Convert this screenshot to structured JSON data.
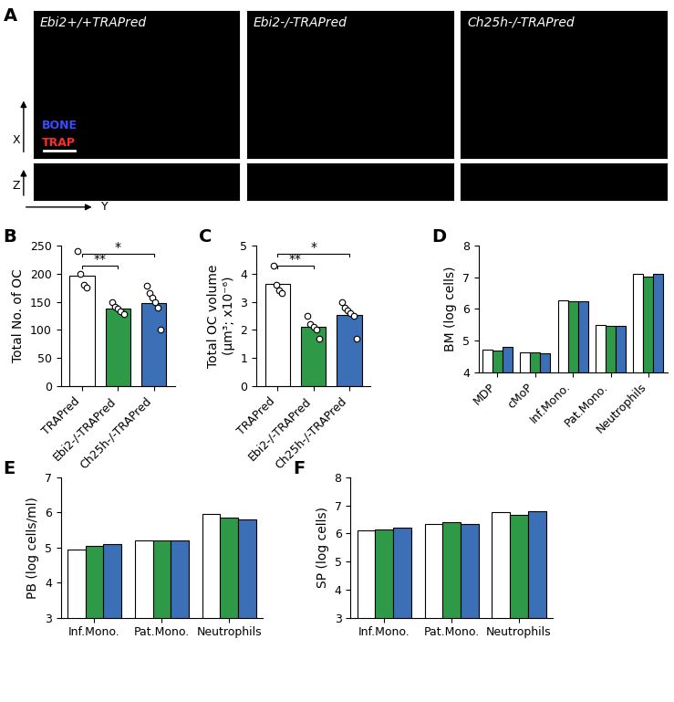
{
  "panel_A": {
    "panel_label": "A",
    "images": [
      {
        "title": "Ebi2+/+TRAPred"
      },
      {
        "title": "Ebi2-/-TRAPred"
      },
      {
        "title": "Ch25h-/-TRAPred"
      }
    ],
    "legend": [
      {
        "text": "BONE",
        "color": "#3a4bff"
      },
      {
        "text": "TRAP",
        "color": "#ff2a2a"
      }
    ],
    "axis_labels": {
      "vertical_top": "X",
      "vertical_bottom": "Z",
      "horizontal": "Y"
    }
  },
  "chart_data": [
    {
      "panel_label": "B",
      "type": "bar",
      "categories": [
        "TRAPred",
        "Ebi2-/-TRAPred",
        "Ch25h-/-TRAPred"
      ],
      "values": [
        197,
        138,
        148
      ],
      "colors": [
        "#ffffff",
        "#2e9a48",
        "#3b6fb6"
      ],
      "points": [
        [
          240,
          200,
          180,
          175
        ],
        [
          150,
          142,
          138,
          133,
          128
        ],
        [
          178,
          165,
          157,
          150,
          140,
          100
        ]
      ],
      "ylabel": "Total No. of OC",
      "ylim": [
        0,
        250
      ],
      "yticks": [
        0,
        50,
        100,
        150,
        200,
        250
      ],
      "brackets": [
        {
          "pair": [
            0,
            1
          ],
          "label": "**"
        },
        {
          "pair": [
            0,
            2
          ],
          "label": "*"
        }
      ]
    },
    {
      "panel_label": "C",
      "type": "bar",
      "categories": [
        "TRAPred",
        "Ebi2-/-TRAPred",
        "Ch25h-/-TRAPred"
      ],
      "values": [
        3.65,
        2.1,
        2.55
      ],
      "colors": [
        "#ffffff",
        "#2e9a48",
        "#3b6fb6"
      ],
      "points": [
        [
          4.3,
          3.6,
          3.4,
          3.3
        ],
        [
          2.5,
          2.2,
          2.1,
          2.0,
          1.7
        ],
        [
          3.0,
          2.8,
          2.7,
          2.6,
          2.5,
          1.7
        ]
      ],
      "ylabel": "Total OC volume\n(µm³; x10⁻⁶)",
      "ylim": [
        0,
        5
      ],
      "yticks": [
        0,
        1,
        2,
        3,
        4,
        5
      ],
      "brackets": [
        {
          "pair": [
            0,
            1
          ],
          "label": "**"
        },
        {
          "pair": [
            0,
            2
          ],
          "label": "*"
        }
      ]
    },
    {
      "panel_label": "D",
      "type": "grouped_bar",
      "categories": [
        "MDP",
        "cMoP",
        "Inf.Mono.",
        "Pat.Mono.",
        "Neutrophils"
      ],
      "series": [
        {
          "color": "#ffffff",
          "values": [
            4.72,
            4.62,
            6.28,
            5.48,
            7.1
          ]
        },
        {
          "color": "#2e9a48",
          "values": [
            4.68,
            4.62,
            6.25,
            5.45,
            7.02
          ]
        },
        {
          "color": "#3b6fb6",
          "values": [
            4.8,
            4.6,
            6.25,
            5.45,
            7.1
          ]
        }
      ],
      "ylabel": "BM (log cells)",
      "ylim": [
        4,
        8
      ],
      "yticks": [
        4,
        5,
        6,
        7,
        8
      ]
    },
    {
      "panel_label": "E",
      "type": "grouped_bar",
      "categories": [
        "Inf.Mono.",
        "Pat.Mono.",
        "Neutrophils"
      ],
      "series": [
        {
          "color": "#ffffff",
          "values": [
            4.95,
            5.2,
            5.95
          ]
        },
        {
          "color": "#2e9a48",
          "values": [
            5.05,
            5.2,
            5.85
          ]
        },
        {
          "color": "#3b6fb6",
          "values": [
            5.1,
            5.2,
            5.8
          ]
        }
      ],
      "ylabel": "PB (log cells/ml)",
      "ylim": [
        3,
        7
      ],
      "yticks": [
        3,
        4,
        5,
        6,
        7
      ]
    },
    {
      "panel_label": "F",
      "type": "grouped_bar",
      "categories": [
        "Inf.Mono.",
        "Pat.Mono.",
        "Neutrophils"
      ],
      "series": [
        {
          "color": "#ffffff",
          "values": [
            6.1,
            6.35,
            6.75
          ]
        },
        {
          "color": "#2e9a48",
          "values": [
            6.15,
            6.4,
            6.65
          ]
        },
        {
          "color": "#3b6fb6",
          "values": [
            6.2,
            6.35,
            6.8
          ]
        }
      ],
      "ylabel": "SP (log cells)",
      "ylim": [
        3,
        8
      ],
      "yticks": [
        3,
        4,
        5,
        6,
        7,
        8
      ]
    }
  ]
}
